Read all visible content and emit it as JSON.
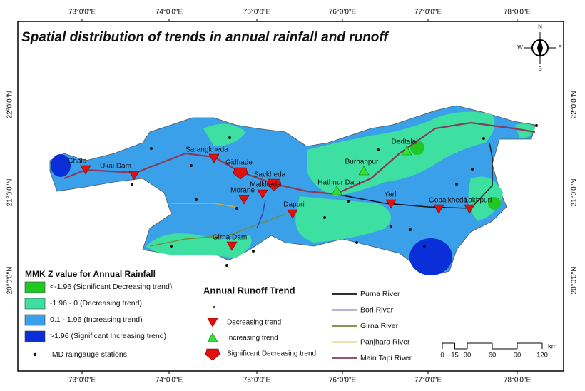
{
  "title": "Spatial distribution of trends in annual rainfall and runoff",
  "graticule": {
    "longitudes": [
      "73°0'0\"E",
      "74°0'0\"E",
      "75°0'0\"E",
      "76°0'0\"E",
      "77°0'0\"E",
      "78°0'0\"E"
    ],
    "latitudes": [
      "20°0'0\"N",
      "21°0'0\"N",
      "22°0'0\"N"
    ]
  },
  "compass": {
    "n": "N",
    "s": "S",
    "e": "E",
    "w": "W"
  },
  "stations": [
    {
      "label": "Ghala",
      "trend": "decreasing"
    },
    {
      "label": "Ukai Dam",
      "trend": "decreasing"
    },
    {
      "label": "Sarangkheda",
      "trend": "decreasing"
    },
    {
      "label": "Gidhade",
      "trend": "significant-decreasing"
    },
    {
      "label": "Savkheda",
      "trend": "significant-decreasing"
    },
    {
      "label": "Malkheda",
      "trend": "decreasing"
    },
    {
      "label": "Morane",
      "trend": "decreasing"
    },
    {
      "label": "Dapuri",
      "trend": "decreasing"
    },
    {
      "label": "Girna Dam",
      "trend": "decreasing"
    },
    {
      "label": "Hathnur Dam",
      "trend": "increasing"
    },
    {
      "label": "Burhanpur",
      "trend": "increasing"
    },
    {
      "label": "Dedtalai",
      "trend": "increasing"
    },
    {
      "label": "Yerli",
      "trend": "decreasing"
    },
    {
      "label": "Gopalkheda",
      "trend": "decreasing"
    },
    {
      "label": "Lakhpuri",
      "trend": "decreasing"
    }
  ],
  "legend_rainfall": {
    "title": "MMK Z value for Annual Rainfall",
    "items": [
      {
        "label": "<-1.96 (Significant Decreasing trend)",
        "color": "#22c822"
      },
      {
        "label": "-1.96 - 0 (Decreasing trend)",
        "color": "#3de0a0"
      },
      {
        "label": "0.1 - 1.96 (Increasing trend)",
        "color": "#3aa0ea"
      },
      {
        "label": ">1.96 (Significant Increasing trend)",
        "color": "#0a2fd8"
      }
    ],
    "stations_label": "IMD raingauge stations"
  },
  "legend_runoff": {
    "title": "Annual Runoff Trend",
    "items": [
      {
        "label": "Decreasing trend",
        "trend": "decreasing"
      },
      {
        "label": "Increasing trend",
        "trend": "increasing"
      },
      {
        "label": "Significant Decreasing trend",
        "trend": "significant-decreasing"
      }
    ]
  },
  "legend_rivers": {
    "items": [
      {
        "label": "Purna River",
        "color": "#111111"
      },
      {
        "label": "Bori River",
        "color": "#3a3aa8"
      },
      {
        "label": "Girna River",
        "color": "#7a8a30"
      },
      {
        "label": "Panjhara River",
        "color": "#c8b040"
      },
      {
        "label": "Main Tapi River",
        "color": "#8a3a5a"
      }
    ]
  },
  "scale_bar": {
    "ticks": [
      0,
      15,
      30,
      60,
      90,
      120
    ],
    "unit": "km"
  }
}
